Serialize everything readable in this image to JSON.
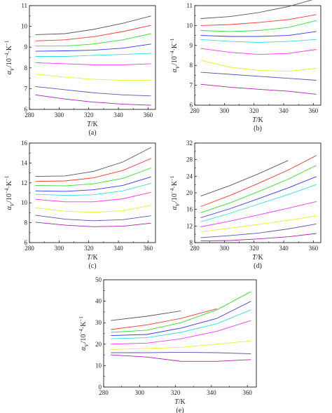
{
  "figure": {
    "chart_data": [
      {
        "panel_label": "(a)",
        "type": "line",
        "xlabel_var": "T",
        "xlabel_unit": "/K",
        "ylabel_var": "α",
        "ylabel_sub": "V",
        "ylabel_unit": "/10",
        "ylabel_exp": "−4",
        "ylabel_tail": "·K",
        "ylabel_tail_exp": "−1",
        "xlim": [
          280,
          365
        ],
        "ylim": [
          6,
          11
        ],
        "xticks": [
          280,
          300,
          320,
          340,
          360
        ],
        "yticks": [
          6,
          7,
          8,
          9,
          10,
          11
        ],
        "series": [
          {
            "color": "#555555",
            "x": [
              284,
              304,
              323,
              343,
              362
            ],
            "y": [
              9.6,
              9.65,
              9.85,
              10.15,
              10.5
            ]
          },
          {
            "color": "#ff3333",
            "x": [
              284,
              304,
              323,
              343,
              362
            ],
            "y": [
              9.3,
              9.35,
              9.5,
              9.75,
              10.05
            ]
          },
          {
            "color": "#33dd33",
            "x": [
              284,
              304,
              323,
              343,
              362
            ],
            "y": [
              9.05,
              9.05,
              9.15,
              9.35,
              9.65
            ]
          },
          {
            "color": "#3333ff",
            "x": [
              284,
              304,
              323,
              343,
              362
            ],
            "y": [
              8.8,
              8.82,
              8.85,
              8.95,
              9.15
            ]
          },
          {
            "color": "#33dddd",
            "x": [
              284,
              304,
              323,
              343,
              362
            ],
            "y": [
              8.55,
              8.55,
              8.6,
              8.65,
              8.7
            ]
          },
          {
            "color": "#ff33ff",
            "x": [
              284,
              304,
              323,
              343,
              362
            ],
            "y": [
              8.25,
              8.2,
              8.15,
              8.15,
              8.2
            ]
          },
          {
            "color": "#eeee22",
            "x": [
              284,
              304,
              323,
              343,
              362
            ],
            "y": [
              7.7,
              7.55,
              7.45,
              7.4,
              7.4
            ]
          },
          {
            "color": "#5555aa",
            "x": [
              284,
              304,
              323,
              343,
              362
            ],
            "y": [
              7.1,
              6.95,
              6.8,
              6.7,
              6.65
            ]
          },
          {
            "color": "#aa22aa",
            "x": [
              284,
              304,
              323,
              343,
              362
            ],
            "y": [
              6.7,
              6.5,
              6.35,
              6.25,
              6.2
            ]
          }
        ]
      },
      {
        "panel_label": "(b)",
        "type": "line",
        "xlabel_var": "T",
        "xlabel_unit": "/K",
        "ylabel_var": "α",
        "ylabel_sub": "V",
        "ylabel_unit": "/10",
        "ylabel_exp": "−4",
        "ylabel_tail": "·K",
        "ylabel_tail_exp": "−1",
        "xlim": [
          280,
          365
        ],
        "ylim": [
          6,
          11
        ],
        "xticks": [
          280,
          300,
          320,
          340,
          360
        ],
        "yticks": [
          6,
          7,
          8,
          9,
          10,
          11
        ],
        "series": [
          {
            "color": "#555555",
            "x": [
              284,
              304,
              323,
              343,
              362
            ],
            "y": [
              10.35,
              10.45,
              10.65,
              10.95,
              11.35
            ]
          },
          {
            "color": "#ff3333",
            "x": [
              284,
              304,
              323,
              343,
              362
            ],
            "y": [
              10.0,
              10.05,
              10.15,
              10.3,
              10.55
            ]
          },
          {
            "color": "#33dd33",
            "x": [
              284,
              304,
              323,
              343,
              362
            ],
            "y": [
              9.75,
              9.7,
              9.75,
              9.9,
              10.25
            ]
          },
          {
            "color": "#3333ff",
            "x": [
              284,
              304,
              323,
              343,
              362
            ],
            "y": [
              9.5,
              9.45,
              9.45,
              9.5,
              9.7
            ]
          },
          {
            "color": "#33dddd",
            "x": [
              284,
              304,
              323,
              343,
              362
            ],
            "y": [
              9.3,
              9.2,
              9.15,
              9.2,
              9.3
            ]
          },
          {
            "color": "#ff33ff",
            "x": [
              284,
              304,
              323,
              343,
              362
            ],
            "y": [
              8.85,
              8.65,
              8.55,
              8.6,
              8.8
            ]
          },
          {
            "color": "#eeee22",
            "x": [
              284,
              304,
              323,
              343,
              362
            ],
            "y": [
              8.25,
              7.9,
              7.75,
              7.7,
              7.85
            ]
          },
          {
            "color": "#5555aa",
            "x": [
              284,
              304,
              323,
              343,
              362
            ],
            "y": [
              7.65,
              7.55,
              7.45,
              7.35,
              7.25
            ]
          },
          {
            "color": "#aa22aa",
            "x": [
              284,
              304,
              323,
              343,
              362
            ],
            "y": [
              7.05,
              6.9,
              6.8,
              6.7,
              6.55
            ]
          }
        ]
      },
      {
        "panel_label": "(c)",
        "type": "line",
        "xlabel_var": "T",
        "xlabel_unit": "/K",
        "ylabel_var": "α",
        "ylabel_sub": "V",
        "ylabel_unit": "/10",
        "ylabel_exp": "−4",
        "ylabel_tail": "·K",
        "ylabel_tail_exp": "−1",
        "xlim": [
          280,
          365
        ],
        "ylim": [
          6,
          16
        ],
        "xticks": [
          280,
          300,
          320,
          340,
          360
        ],
        "yticks": [
          6,
          8,
          10,
          12,
          14,
          16
        ],
        "series": [
          {
            "color": "#555555",
            "x": [
              284,
              304,
              323,
              343,
              362
            ],
            "y": [
              12.65,
              12.7,
              13.15,
              14.1,
              15.55
            ]
          },
          {
            "color": "#ff3333",
            "x": [
              284,
              304,
              323,
              343,
              362
            ],
            "y": [
              12.15,
              12.2,
              12.5,
              13.25,
              14.45
            ]
          },
          {
            "color": "#33dd33",
            "x": [
              284,
              304,
              323,
              343,
              362
            ],
            "y": [
              11.75,
              11.7,
              11.9,
              12.45,
              13.5
            ]
          },
          {
            "color": "#3333ff",
            "x": [
              284,
              304,
              323,
              343,
              362
            ],
            "y": [
              11.2,
              11.15,
              11.3,
              11.75,
              12.6
            ]
          },
          {
            "color": "#33dddd",
            "x": [
              284,
              304,
              323,
              343,
              362
            ],
            "y": [
              10.85,
              10.75,
              10.8,
              11.2,
              11.95
            ]
          },
          {
            "color": "#ff33ff",
            "x": [
              284,
              304,
              323,
              343,
              362
            ],
            "y": [
              10.35,
              10.1,
              10.1,
              10.4,
              11.05
            ]
          },
          {
            "color": "#eeee22",
            "x": [
              284,
              304,
              323,
              343,
              362
            ],
            "y": [
              9.5,
              9.15,
              9.05,
              9.2,
              9.75
            ]
          },
          {
            "color": "#5555aa",
            "x": [
              284,
              304,
              323,
              343,
              362
            ],
            "y": [
              8.75,
              8.35,
              8.2,
              8.3,
              8.7
            ]
          },
          {
            "color": "#aa22aa",
            "x": [
              284,
              304,
              323,
              343,
              362
            ],
            "y": [
              8.05,
              7.75,
              7.6,
              7.65,
              7.95
            ]
          }
        ]
      },
      {
        "panel_label": "(d)",
        "type": "line",
        "xlabel_var": "T",
        "xlabel_unit": "/K",
        "ylabel_var": "α",
        "ylabel_sub": "V",
        "ylabel_unit": "/10",
        "ylabel_exp": "−4",
        "ylabel_tail": "·K",
        "ylabel_tail_exp": "−1",
        "xlim": [
          280,
          365
        ],
        "ylim": [
          8,
          32
        ],
        "xticks": [
          280,
          300,
          320,
          340,
          360
        ],
        "yticks": [
          8,
          12,
          16,
          20,
          24,
          28,
          32
        ],
        "series": [
          {
            "color": "#555555",
            "x": [
              284,
              304,
              323,
              343
            ],
            "y": [
              19.2,
              21.8,
              24.6,
              27.8
            ]
          },
          {
            "color": "#ff3333",
            "x": [
              284,
              304,
              323,
              343,
              362
            ],
            "y": [
              16.7,
              19.4,
              22.3,
              25.5,
              29.0
            ]
          },
          {
            "color": "#33dd33",
            "x": [
              284,
              304,
              323,
              343,
              362
            ],
            "y": [
              15.2,
              17.6,
              20.3,
              23.3,
              26.6
            ]
          },
          {
            "color": "#3333ff",
            "x": [
              284,
              304,
              323,
              343,
              362
            ],
            "y": [
              14.0,
              16.2,
              18.6,
              21.2,
              23.9
            ]
          },
          {
            "color": "#33dddd",
            "x": [
              284,
              304,
              323,
              343,
              362
            ],
            "y": [
              13.0,
              15.1,
              17.3,
              19.6,
              22.0
            ]
          },
          {
            "color": "#ff33ff",
            "x": [
              284,
              304,
              323,
              343,
              362
            ],
            "y": [
              11.8,
              13.2,
              14.7,
              16.3,
              17.9
            ]
          },
          {
            "color": "#eeee22",
            "x": [
              284,
              304,
              323,
              343,
              362
            ],
            "y": [
              10.6,
              11.5,
              12.4,
              13.4,
              14.4
            ]
          },
          {
            "color": "#5555aa",
            "x": [
              284,
              304,
              323,
              343,
              362
            ],
            "y": [
              9.2,
              9.7,
              10.3,
              11.3,
              12.5
            ]
          },
          {
            "color": "#aa22aa",
            "x": [
              284,
              304,
              323,
              343,
              362
            ],
            "y": [
              8.4,
              8.5,
              8.9,
              9.4,
              10.2
            ]
          }
        ]
      },
      {
        "panel_label": "(e)",
        "type": "line",
        "xlabel_var": "T",
        "xlabel_unit": "/K",
        "ylabel_var": "α",
        "ylabel_sub": "V",
        "ylabel_unit": "/10",
        "ylabel_exp": "−4",
        "ylabel_tail": "·K",
        "ylabel_tail_exp": "−1",
        "xlim": [
          280,
          365
        ],
        "ylim": [
          0,
          50
        ],
        "xticks": [
          280,
          300,
          320,
          340,
          360
        ],
        "yticks": [
          0,
          10,
          20,
          30,
          40,
          50
        ],
        "series": [
          {
            "color": "#555555",
            "x": [
              284,
              304,
              323
            ],
            "y": [
              31.0,
              33.0,
              35.5
            ]
          },
          {
            "color": "#ff3333",
            "x": [
              284,
              304,
              323,
              343
            ],
            "y": [
              26.8,
              29.0,
              32.0,
              36.5
            ]
          },
          {
            "color": "#33dd33",
            "x": [
              284,
              304,
              323,
              343,
              362
            ],
            "y": [
              25.5,
              26.5,
              30.0,
              36.0,
              44.5
            ]
          },
          {
            "color": "#3333ff",
            "x": [
              284,
              304,
              323,
              343,
              362
            ],
            "y": [
              24.0,
              24.5,
              27.5,
              32.0,
              40.0
            ]
          },
          {
            "color": "#33dddd",
            "x": [
              284,
              304,
              323,
              343,
              362
            ],
            "y": [
              22.5,
              23.0,
              25.5,
              29.5,
              36.0
            ]
          },
          {
            "color": "#ff33ff",
            "x": [
              284,
              304,
              323,
              343,
              362
            ],
            "y": [
              20.0,
              20.5,
              22.5,
              26.0,
              31.0
            ]
          },
          {
            "color": "#eeee22",
            "x": [
              284,
              304,
              323,
              343,
              362
            ],
            "y": [
              17.5,
              18.0,
              18.5,
              20.0,
              21.5
            ]
          },
          {
            "color": "#5555aa",
            "x": [
              284,
              304,
              323,
              343,
              362
            ],
            "y": [
              16.0,
              16.0,
              16.2,
              16.0,
              15.5
            ]
          },
          {
            "color": "#aa22aa",
            "x": [
              284,
              304,
              323,
              343,
              362
            ],
            "y": [
              15.0,
              14.0,
              12.0,
              12.0,
              12.8
            ]
          }
        ]
      }
    ]
  }
}
